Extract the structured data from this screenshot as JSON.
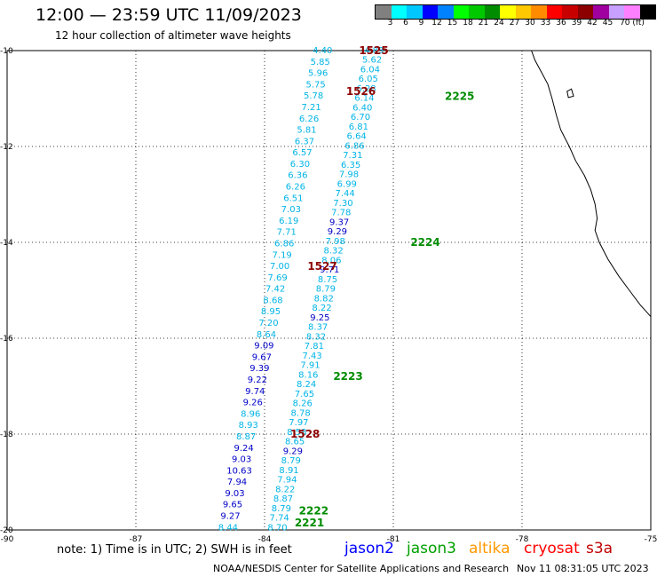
{
  "header": {
    "title": "12:00 — 23:59 UTC 11/09/2023",
    "subtitle": "12 hour collection of altimeter wave heights"
  },
  "legend": {
    "colors": [
      "#808080",
      "#00ffff",
      "#00c8ff",
      "#0000ff",
      "#0082ff",
      "#00ff00",
      "#00c800",
      "#008c00",
      "#ffff00",
      "#ffc800",
      "#ff8c00",
      "#ff0000",
      "#c80000",
      "#8c0000",
      "#a000a0",
      "#c8a0ff",
      "#ff80ff",
      "#000000"
    ],
    "labels": [
      "3",
      "6",
      "9",
      "12",
      "15",
      "18",
      "21",
      "24",
      "27",
      "30",
      "33",
      "36",
      "39",
      "42",
      "45",
      "70 (ft)"
    ]
  },
  "map": {
    "lon_ticks": [
      "-90",
      "-87",
      "-84",
      "-81",
      "-78",
      "-75"
    ],
    "lat_ticks": [
      "-10",
      "-12",
      "-14",
      "-16",
      "-18",
      "-20"
    ],
    "lon_range": [
      -90,
      -75
    ],
    "lat_range": [
      -20,
      -10
    ],
    "track_colors": {
      "cyan": "#00b4e6",
      "blue": "#0000c8",
      "green": "#008c00",
      "maroon": "#8c0000"
    },
    "track_a": [
      {
        "v": "4.40",
        "c": "cyan"
      },
      {
        "v": "5.85",
        "c": "cyan"
      },
      {
        "v": "5.96",
        "c": "cyan"
      },
      {
        "v": "5.75",
        "c": "cyan"
      },
      {
        "v": "5.78",
        "c": "cyan"
      },
      {
        "v": "7.21",
        "c": "cyan"
      },
      {
        "v": "6.26",
        "c": "cyan"
      },
      {
        "v": "5.81",
        "c": "cyan"
      },
      {
        "v": "6.37",
        "c": "cyan"
      },
      {
        "v": "6.57",
        "c": "cyan"
      },
      {
        "v": "6.30",
        "c": "cyan"
      },
      {
        "v": "6.36",
        "c": "cyan"
      },
      {
        "v": "6.26",
        "c": "cyan"
      },
      {
        "v": "6.51",
        "c": "cyan"
      },
      {
        "v": "7.03",
        "c": "cyan"
      },
      {
        "v": "6.19",
        "c": "cyan"
      },
      {
        "v": "7.71",
        "c": "cyan"
      },
      {
        "v": "6.86",
        "c": "cyan"
      },
      {
        "v": "7.19",
        "c": "cyan"
      },
      {
        "v": "7.00",
        "c": "cyan"
      },
      {
        "v": "7.69",
        "c": "cyan"
      },
      {
        "v": "7.42",
        "c": "cyan"
      },
      {
        "v": "8.68",
        "c": "cyan"
      },
      {
        "v": "8.95",
        "c": "cyan"
      },
      {
        "v": "7.20",
        "c": "cyan"
      },
      {
        "v": "8.64",
        "c": "cyan"
      },
      {
        "v": "9.09",
        "c": "blue"
      },
      {
        "v": "9.67",
        "c": "blue"
      },
      {
        "v": "9.39",
        "c": "blue"
      },
      {
        "v": "9.22",
        "c": "blue"
      },
      {
        "v": "9.74",
        "c": "blue"
      },
      {
        "v": "9.26",
        "c": "blue"
      },
      {
        "v": "8.96",
        "c": "cyan"
      },
      {
        "v": "8.93",
        "c": "cyan"
      },
      {
        "v": "8.87",
        "c": "cyan"
      },
      {
        "v": "9.24",
        "c": "blue"
      },
      {
        "v": "9.03",
        "c": "blue"
      },
      {
        "v": "10.63",
        "c": "blue"
      },
      {
        "v": "7.94",
        "c": "blue"
      },
      {
        "v": "9.03",
        "c": "blue"
      },
      {
        "v": "9.65",
        "c": "blue"
      },
      {
        "v": "9.27",
        "c": "blue"
      },
      {
        "v": "8.44",
        "c": "cyan"
      }
    ],
    "track_b": [
      {
        "v": "4.83",
        "c": "cyan"
      },
      {
        "v": "5.62",
        "c": "cyan"
      },
      {
        "v": "6.04",
        "c": "cyan"
      },
      {
        "v": "6.05",
        "c": "cyan"
      },
      {
        "v": "6.28",
        "c": "cyan"
      },
      {
        "v": "6.14",
        "c": "cyan"
      },
      {
        "v": "6.40",
        "c": "cyan"
      },
      {
        "v": "6.70",
        "c": "cyan"
      },
      {
        "v": "6.81",
        "c": "cyan"
      },
      {
        "v": "6.64",
        "c": "cyan"
      },
      {
        "v": "6.86",
        "c": "cyan"
      },
      {
        "v": "7.31",
        "c": "cyan"
      },
      {
        "v": "6.35",
        "c": "cyan"
      },
      {
        "v": "7.98",
        "c": "cyan"
      },
      {
        "v": "6.99",
        "c": "cyan"
      },
      {
        "v": "7.44",
        "c": "cyan"
      },
      {
        "v": "7.30",
        "c": "cyan"
      },
      {
        "v": "7.78",
        "c": "cyan"
      },
      {
        "v": "9.37",
        "c": "blue"
      },
      {
        "v": "9.29",
        "c": "blue"
      },
      {
        "v": "7.98",
        "c": "cyan"
      },
      {
        "v": "8.32",
        "c": "cyan"
      },
      {
        "v": "8.06",
        "c": "cyan"
      },
      {
        "v": "9.71",
        "c": "blue"
      },
      {
        "v": "8.75",
        "c": "cyan"
      },
      {
        "v": "8.79",
        "c": "cyan"
      },
      {
        "v": "8.82",
        "c": "cyan"
      },
      {
        "v": "8.22",
        "c": "cyan"
      },
      {
        "v": "9.25",
        "c": "blue"
      },
      {
        "v": "8.37",
        "c": "cyan"
      },
      {
        "v": "8.32",
        "c": "cyan"
      },
      {
        "v": "7.81",
        "c": "cyan"
      },
      {
        "v": "7.43",
        "c": "cyan"
      },
      {
        "v": "7.91",
        "c": "cyan"
      },
      {
        "v": "8.16",
        "c": "cyan"
      },
      {
        "v": "8.24",
        "c": "cyan"
      },
      {
        "v": "7.65",
        "c": "cyan"
      },
      {
        "v": "8.26",
        "c": "cyan"
      },
      {
        "v": "8.78",
        "c": "cyan"
      },
      {
        "v": "7.97",
        "c": "cyan"
      },
      {
        "v": "8.58",
        "c": "cyan"
      },
      {
        "v": "8.65",
        "c": "cyan"
      },
      {
        "v": "9.29",
        "c": "blue"
      },
      {
        "v": "8.79",
        "c": "cyan"
      },
      {
        "v": "8.91",
        "c": "cyan"
      },
      {
        "v": "7.94",
        "c": "cyan"
      },
      {
        "v": "8.22",
        "c": "cyan"
      },
      {
        "v": "8.87",
        "c": "cyan"
      },
      {
        "v": "8.79",
        "c": "cyan"
      },
      {
        "v": "7.74",
        "c": "cyan"
      },
      {
        "v": "8.70",
        "c": "cyan"
      }
    ],
    "pass_labels": [
      {
        "text": "1525",
        "c": "maroon",
        "lon": -81.8,
        "lat": -10.0
      },
      {
        "text": "1526",
        "c": "maroon",
        "lon": -82.1,
        "lat": -10.85
      },
      {
        "text": "2225",
        "c": "green",
        "lon": -79.8,
        "lat": -10.95
      },
      {
        "text": "2224",
        "c": "green",
        "lon": -80.6,
        "lat": -14.0
      },
      {
        "text": "1527",
        "c": "maroon",
        "lon": -83.0,
        "lat": -14.5
      },
      {
        "text": "2223",
        "c": "green",
        "lon": -82.4,
        "lat": -16.8
      },
      {
        "text": "1528",
        "c": "maroon",
        "lon": -83.4,
        "lat": -18.0
      },
      {
        "text": "2222",
        "c": "green",
        "lon": -83.2,
        "lat": -19.6
      },
      {
        "text": "2221",
        "c": "green",
        "lon": -83.3,
        "lat": -19.85
      }
    ],
    "coastline": [
      [
        -77.78,
        -10.0
      ],
      [
        -77.7,
        -10.2
      ],
      [
        -77.55,
        -10.45
      ],
      [
        -77.4,
        -10.7
      ],
      [
        -77.3,
        -11.0
      ],
      [
        -77.2,
        -11.35
      ],
      [
        -77.1,
        -11.65
      ],
      [
        -76.9,
        -12.0
      ],
      [
        -76.75,
        -12.3
      ],
      [
        -76.55,
        -12.6
      ],
      [
        -76.4,
        -12.9
      ],
      [
        -76.3,
        -13.2
      ],
      [
        -76.25,
        -13.5
      ],
      [
        -76.3,
        -13.75
      ],
      [
        -76.2,
        -14.0
      ],
      [
        -76.0,
        -14.35
      ],
      [
        -75.75,
        -14.7
      ],
      [
        -75.5,
        -15.0
      ],
      [
        -75.25,
        -15.3
      ],
      [
        -75.0,
        -15.55
      ]
    ],
    "island": [
      [
        -76.95,
        -10.85
      ],
      [
        -76.85,
        -10.8
      ],
      [
        -76.8,
        -10.95
      ],
      [
        -76.92,
        -10.98
      ]
    ]
  },
  "note": "note:  1) Time is in UTC; 2) SWH is in feet",
  "satellites": [
    {
      "name": "jason2",
      "color": "#0000ff"
    },
    {
      "name": "jason3",
      "color": "#00a000"
    },
    {
      "name": "altika",
      "color": "#ff9900"
    },
    {
      "name": "cryosat",
      "color": "#ff0000"
    },
    {
      "name": "s3a",
      "color": "#c00000"
    }
  ],
  "footer": {
    "credit": "NOAA/NESDIS Center for Satellite Applications and Research",
    "timestamp": "Nov 11 08:31:05 UTC 2023"
  }
}
